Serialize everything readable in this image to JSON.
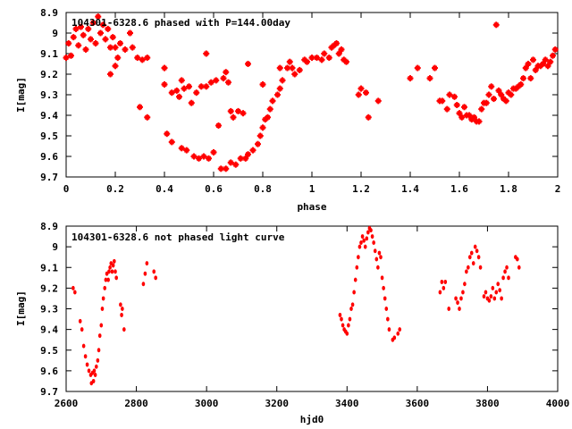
{
  "chart_data": [
    {
      "type": "scatter",
      "title": "104301-6328.6 phased with P=144.00day",
      "xlabel": "phase",
      "ylabel": "I[mag]",
      "xlim": [
        0,
        2
      ],
      "ylim": [
        9.7,
        8.9
      ],
      "y_inverted": true,
      "grid": false,
      "marker": "asterisk",
      "color": "#ff0000",
      "x_ticks": [
        "0",
        "0.2",
        "0.4",
        "0.6",
        "0.8",
        "1",
        "1.2",
        "1.4",
        "1.6",
        "1.8",
        "2"
      ],
      "y_ticks": [
        "8.9",
        "9",
        "9.1",
        "9.2",
        "9.3",
        "9.4",
        "9.5",
        "9.6",
        "9.7"
      ],
      "points": [
        [
          0.0,
          9.12
        ],
        [
          0.01,
          9.05
        ],
        [
          0.02,
          9.11
        ],
        [
          0.03,
          9.02
        ],
        [
          0.04,
          8.98
        ],
        [
          0.05,
          9.06
        ],
        [
          0.06,
          8.97
        ],
        [
          0.07,
          9.01
        ],
        [
          0.08,
          9.08
        ],
        [
          0.09,
          8.98
        ],
        [
          0.1,
          9.03
        ],
        [
          0.11,
          8.95
        ],
        [
          0.12,
          9.05
        ],
        [
          0.13,
          8.92
        ],
        [
          0.14,
          9.0
        ],
        [
          0.15,
          8.96
        ],
        [
          0.16,
          9.03
        ],
        [
          0.17,
          8.98
        ],
        [
          0.18,
          9.07
        ],
        [
          0.19,
          9.02
        ],
        [
          0.2,
          9.07
        ],
        [
          0.21,
          9.12
        ],
        [
          0.22,
          9.05
        ],
        [
          0.24,
          9.08
        ],
        [
          0.26,
          9.0
        ],
        [
          0.27,
          9.07
        ],
        [
          0.29,
          9.12
        ],
        [
          0.3,
          9.36
        ],
        [
          0.31,
          9.13
        ],
        [
          0.33,
          9.12
        ],
        [
          0.33,
          9.41
        ],
        [
          0.18,
          9.2
        ],
        [
          0.2,
          9.16
        ],
        [
          0.4,
          9.25
        ],
        [
          0.41,
          9.49
        ],
        [
          0.43,
          9.53
        ],
        [
          0.45,
          9.28
        ],
        [
          0.46,
          9.31
        ],
        [
          0.47,
          9.56
        ],
        [
          0.47,
          9.23
        ],
        [
          0.48,
          9.27
        ],
        [
          0.49,
          9.57
        ],
        [
          0.5,
          9.26
        ],
        [
          0.51,
          9.34
        ],
        [
          0.52,
          9.6
        ],
        [
          0.53,
          9.29
        ],
        [
          0.54,
          9.61
        ],
        [
          0.55,
          9.26
        ],
        [
          0.56,
          9.6
        ],
        [
          0.57,
          9.26
        ],
        [
          0.58,
          9.61
        ],
        [
          0.59,
          9.24
        ],
        [
          0.6,
          9.58
        ],
        [
          0.61,
          9.23
        ],
        [
          0.62,
          9.45
        ],
        [
          0.63,
          9.66
        ],
        [
          0.64,
          9.22
        ],
        [
          0.65,
          9.66
        ],
        [
          0.66,
          9.24
        ],
        [
          0.67,
          9.63
        ],
        [
          0.68,
          9.41
        ],
        [
          0.69,
          9.64
        ],
        [
          0.7,
          9.38
        ],
        [
          0.71,
          9.61
        ],
        [
          0.72,
          9.39
        ],
        [
          0.73,
          9.61
        ],
        [
          0.74,
          9.59
        ],
        [
          0.76,
          9.57
        ],
        [
          0.78,
          9.54
        ],
        [
          0.79,
          9.5
        ],
        [
          0.8,
          9.46
        ],
        [
          0.81,
          9.42
        ],
        [
          0.82,
          9.41
        ],
        [
          0.83,
          9.37
        ],
        [
          0.84,
          9.33
        ],
        [
          0.86,
          9.3
        ],
        [
          0.87,
          9.27
        ],
        [
          0.88,
          9.23
        ],
        [
          0.9,
          9.17
        ],
        [
          0.91,
          9.14
        ],
        [
          0.92,
          9.17
        ],
        [
          0.93,
          9.2
        ],
        [
          0.95,
          9.18
        ],
        [
          0.97,
          9.13
        ],
        [
          0.98,
          9.14
        ],
        [
          1.0,
          9.12
        ],
        [
          1.02,
          9.12
        ],
        [
          1.04,
          9.13
        ],
        [
          1.05,
          9.1
        ],
        [
          1.07,
          9.12
        ],
        [
          1.08,
          9.07
        ],
        [
          1.09,
          9.06
        ],
        [
          1.1,
          9.05
        ],
        [
          1.11,
          9.1
        ],
        [
          1.12,
          9.08
        ],
        [
          1.13,
          9.13
        ],
        [
          1.14,
          9.14
        ],
        [
          1.19,
          9.3
        ],
        [
          1.2,
          9.27
        ],
        [
          1.22,
          9.29
        ],
        [
          1.23,
          9.41
        ],
        [
          1.27,
          9.33
        ],
        [
          1.4,
          9.22
        ],
        [
          1.43,
          9.17
        ],
        [
          1.48,
          9.22
        ],
        [
          1.5,
          9.17
        ],
        [
          1.52,
          9.33
        ],
        [
          1.53,
          9.33
        ],
        [
          1.55,
          9.37
        ],
        [
          1.56,
          9.3
        ],
        [
          1.58,
          9.31
        ],
        [
          1.59,
          9.35
        ],
        [
          1.6,
          9.39
        ],
        [
          1.61,
          9.41
        ],
        [
          1.62,
          9.36
        ],
        [
          1.63,
          9.4
        ],
        [
          1.64,
          9.4
        ],
        [
          1.65,
          9.42
        ],
        [
          1.66,
          9.41
        ],
        [
          1.67,
          9.43
        ],
        [
          1.68,
          9.43
        ],
        [
          1.69,
          9.37
        ],
        [
          1.7,
          9.34
        ],
        [
          1.71,
          9.34
        ],
        [
          1.72,
          9.3
        ],
        [
          1.73,
          9.26
        ],
        [
          1.74,
          9.32
        ],
        [
          1.75,
          8.96
        ],
        [
          1.76,
          9.28
        ],
        [
          1.77,
          9.3
        ],
        [
          1.78,
          9.32
        ],
        [
          1.79,
          9.33
        ],
        [
          1.8,
          9.29
        ],
        [
          1.81,
          9.3
        ],
        [
          1.82,
          9.27
        ],
        [
          1.83,
          9.27
        ],
        [
          1.84,
          9.26
        ],
        [
          1.85,
          9.25
        ],
        [
          1.86,
          9.22
        ],
        [
          1.87,
          9.17
        ],
        [
          1.88,
          9.15
        ],
        [
          1.89,
          9.22
        ],
        [
          1.9,
          9.13
        ],
        [
          1.91,
          9.18
        ],
        [
          1.92,
          9.16
        ],
        [
          1.93,
          9.16
        ],
        [
          1.94,
          9.15
        ],
        [
          1.95,
          9.13
        ],
        [
          1.96,
          9.16
        ],
        [
          1.97,
          9.14
        ],
        [
          1.98,
          9.11
        ],
        [
          1.99,
          9.08
        ],
        [
          0.4,
          9.17
        ],
        [
          0.43,
          9.29
        ],
        [
          0.8,
          9.25
        ],
        [
          0.67,
          9.38
        ],
        [
          0.74,
          9.15
        ],
        [
          0.65,
          9.19
        ],
        [
          0.87,
          9.17
        ],
        [
          0.57,
          9.1
        ]
      ]
    },
    {
      "type": "scatter",
      "title": "104301-6328.6 not phased light curve",
      "xlabel": "hjd0",
      "ylabel": "I[mag]",
      "xlim": [
        2600,
        4000
      ],
      "ylim": [
        9.7,
        8.9
      ],
      "y_inverted": true,
      "grid": false,
      "marker": "dot",
      "color": "#ff0000",
      "x_ticks": [
        "2600",
        "2800",
        "3000",
        "3200",
        "3400",
        "3600",
        "3800",
        "4000"
      ],
      "y_ticks": [
        "8.9",
        "9",
        "9.1",
        "9.2",
        "9.3",
        "9.4",
        "9.5",
        "9.6",
        "9.7"
      ],
      "points": [
        [
          2620,
          9.2
        ],
        [
          2625,
          9.22
        ],
        [
          2640,
          9.36
        ],
        [
          2645,
          9.4
        ],
        [
          2650,
          9.48
        ],
        [
          2655,
          9.53
        ],
        [
          2660,
          9.57
        ],
        [
          2665,
          9.6
        ],
        [
          2670,
          9.62
        ],
        [
          2672,
          9.66
        ],
        [
          2675,
          9.61
        ],
        [
          2678,
          9.65
        ],
        [
          2680,
          9.6
        ],
        [
          2683,
          9.62
        ],
        [
          2686,
          9.58
        ],
        [
          2690,
          9.55
        ],
        [
          2693,
          9.5
        ],
        [
          2696,
          9.43
        ],
        [
          2700,
          9.38
        ],
        [
          2703,
          9.3
        ],
        [
          2706,
          9.25
        ],
        [
          2710,
          9.2
        ],
        [
          2713,
          9.16
        ],
        [
          2716,
          9.13
        ],
        [
          2720,
          9.16
        ],
        [
          2722,
          9.12
        ],
        [
          2725,
          9.1
        ],
        [
          2728,
          9.08
        ],
        [
          2731,
          9.12
        ],
        [
          2734,
          9.09
        ],
        [
          2737,
          9.07
        ],
        [
          2740,
          9.12
        ],
        [
          2743,
          9.15
        ],
        [
          2755,
          9.28
        ],
        [
          2758,
          9.33
        ],
        [
          2760,
          9.3
        ],
        [
          2765,
          9.4
        ],
        [
          2820,
          9.18
        ],
        [
          2825,
          9.13
        ],
        [
          2830,
          9.08
        ],
        [
          2850,
          9.12
        ],
        [
          2855,
          9.15
        ],
        [
          3380,
          9.33
        ],
        [
          3384,
          9.35
        ],
        [
          3388,
          9.38
        ],
        [
          3392,
          9.4
        ],
        [
          3396,
          9.41
        ],
        [
          3400,
          9.42
        ],
        [
          3404,
          9.38
        ],
        [
          3408,
          9.35
        ],
        [
          3412,
          9.3
        ],
        [
          3416,
          9.28
        ],
        [
          3420,
          9.22
        ],
        [
          3424,
          9.16
        ],
        [
          3428,
          9.1
        ],
        [
          3432,
          9.05
        ],
        [
          3436,
          9.0
        ],
        [
          3440,
          8.98
        ],
        [
          3444,
          8.95
        ],
        [
          3448,
          8.97
        ],
        [
          3452,
          9.0
        ],
        [
          3456,
          8.96
        ],
        [
          3460,
          8.93
        ],
        [
          3464,
          8.91
        ],
        [
          3468,
          8.92
        ],
        [
          3472,
          8.95
        ],
        [
          3476,
          8.98
        ],
        [
          3480,
          9.02
        ],
        [
          3484,
          9.06
        ],
        [
          3488,
          9.1
        ],
        [
          3492,
          9.03
        ],
        [
          3496,
          9.05
        ],
        [
          3500,
          9.15
        ],
        [
          3504,
          9.2
        ],
        [
          3508,
          9.25
        ],
        [
          3512,
          9.3
        ],
        [
          3516,
          9.35
        ],
        [
          3520,
          9.4
        ],
        [
          3530,
          9.45
        ],
        [
          3535,
          9.44
        ],
        [
          3545,
          9.42
        ],
        [
          3550,
          9.4
        ],
        [
          3665,
          9.22
        ],
        [
          3670,
          9.17
        ],
        [
          3675,
          9.2
        ],
        [
          3680,
          9.17
        ],
        [
          3690,
          9.3
        ],
        [
          3710,
          9.25
        ],
        [
          3715,
          9.27
        ],
        [
          3720,
          9.3
        ],
        [
          3725,
          9.25
        ],
        [
          3730,
          9.22
        ],
        [
          3735,
          9.18
        ],
        [
          3740,
          9.12
        ],
        [
          3745,
          9.1
        ],
        [
          3750,
          9.05
        ],
        [
          3755,
          9.03
        ],
        [
          3760,
          9.08
        ],
        [
          3765,
          9.0
        ],
        [
          3770,
          9.02
        ],
        [
          3775,
          9.05
        ],
        [
          3780,
          9.1
        ],
        [
          3790,
          9.24
        ],
        [
          3795,
          9.22
        ],
        [
          3800,
          9.25
        ],
        [
          3805,
          9.26
        ],
        [
          3810,
          9.24
        ],
        [
          3815,
          9.2
        ],
        [
          3820,
          9.25
        ],
        [
          3825,
          9.22
        ],
        [
          3830,
          9.18
        ],
        [
          3835,
          9.21
        ],
        [
          3840,
          9.25
        ],
        [
          3845,
          9.15
        ],
        [
          3850,
          9.12
        ],
        [
          3855,
          9.1
        ],
        [
          3860,
          9.15
        ],
        [
          3880,
          9.05
        ],
        [
          3885,
          9.06
        ],
        [
          3890,
          9.1
        ]
      ]
    }
  ]
}
